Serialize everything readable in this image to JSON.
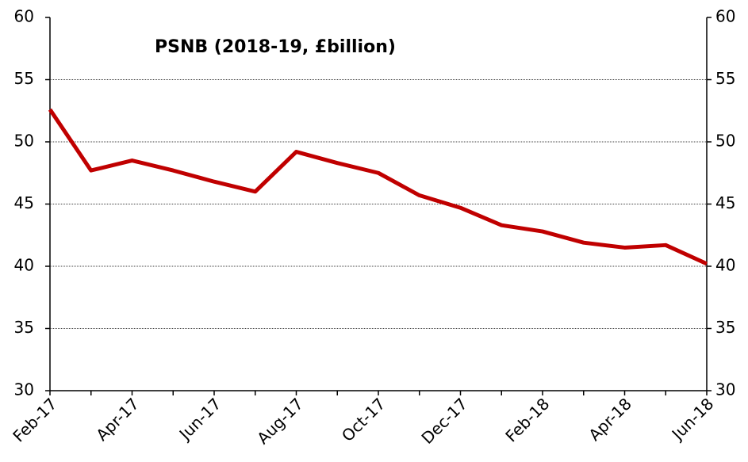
{
  "chart_data": {
    "type": "line",
    "title": "PSNB (2018-19, £billion)",
    "categories": [
      "Feb-17",
      null,
      "Apr-17",
      null,
      "Jun-17",
      null,
      "Aug-17",
      null,
      "Oct-17",
      null,
      "Dec-17",
      null,
      "Feb-18",
      null,
      "Apr-18",
      null,
      "Jun-18"
    ],
    "series": [
      {
        "name": "PSNB",
        "color": "#c00000",
        "values": [
          52.6,
          47.7,
          48.5,
          47.7,
          46.8,
          46.0,
          49.2,
          48.3,
          47.5,
          45.7,
          44.7,
          43.3,
          42.8,
          41.9,
          41.5,
          41.7,
          40.2
        ]
      }
    ],
    "ylim": [
      30,
      60
    ],
    "yticks": [
      30,
      35,
      40,
      45,
      50,
      55,
      60
    ],
    "y2lim": [
      30,
      60
    ],
    "y2ticks": [
      30,
      35,
      40,
      45,
      50,
      55,
      60
    ],
    "grid": true
  }
}
